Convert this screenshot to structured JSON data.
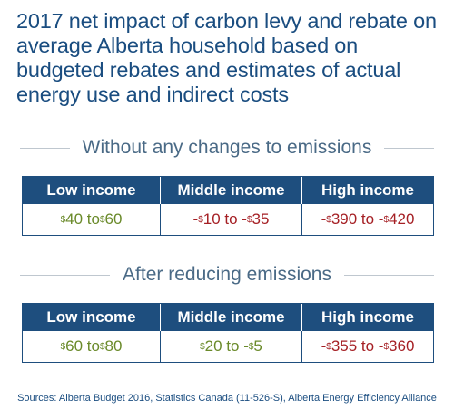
{
  "title": "2017 net impact of carbon levy and rebate on average Alberta household based on budgeted rebates and estimates of actual energy use and indirect costs",
  "chart_data": {
    "type": "table",
    "columns": [
      "Low income",
      "Middle income",
      "High income"
    ],
    "tables": [
      {
        "heading": "Without any changes to emissions",
        "cells": [
          "$40 to $60",
          "-$10 to -$35",
          "-$390 to -$420"
        ],
        "ranges": [
          [
            40,
            60
          ],
          [
            -10,
            -35
          ],
          [
            -390,
            -420
          ]
        ]
      },
      {
        "heading": "After reducing emissions",
        "cells": [
          "$60 to $80",
          "$20 to -$5",
          "-$355 to -$360"
        ],
        "ranges": [
          [
            60,
            80
          ],
          [
            20,
            -5
          ],
          [
            -355,
            -360
          ]
        ]
      }
    ],
    "colors": {
      "header_bg": "#1e4e7e",
      "positive": "#6a8a2a",
      "negative": "#a51f24"
    }
  },
  "source": "Sources: Alberta Budget 2016, Statistics Canada (11-526-S), Alberta Energy Efficiency Alliance"
}
